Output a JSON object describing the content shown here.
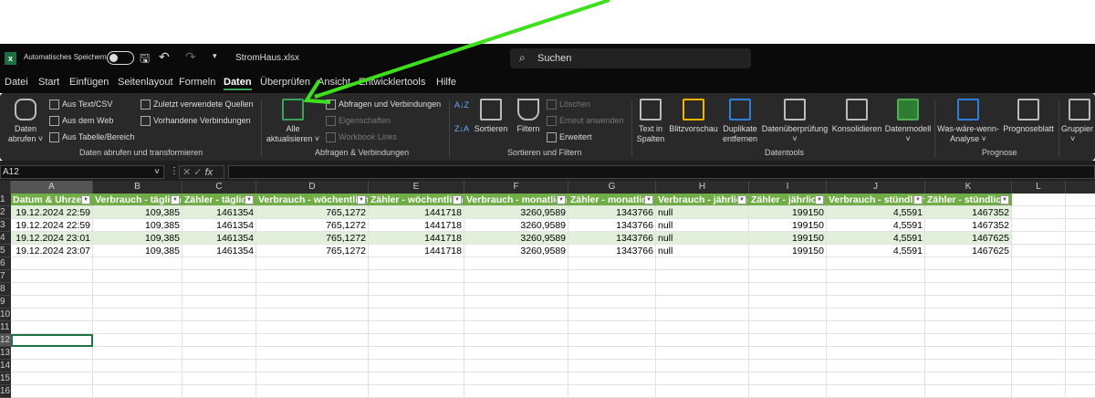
{
  "titlebar": {
    "autosave_label": "Automatisches Speichern",
    "filename": "StromHaus.xlsx",
    "search_placeholder": "Suchen"
  },
  "tabs": [
    "Datei",
    "Start",
    "Einfügen",
    "Seitenlayout",
    "Formeln",
    "Daten",
    "Überprüfen",
    "Ansicht",
    "Entwicklertools",
    "Hilfe"
  ],
  "active_tab": "Daten",
  "ribbon": {
    "daten_abrufen_1": "Daten",
    "daten_abrufen_2": "abrufen",
    "aus_text": "Aus Text/CSV",
    "aus_web": "Aus dem Web",
    "aus_tabelle": "Aus Tabelle/Bereich",
    "zuletzt": "Zuletzt verwendete Quellen",
    "vorhandene": "Vorhandene Verbindungen",
    "group1": "Daten abrufen und transformieren",
    "alle_1": "Alle",
    "alle_2": "aktualisieren",
    "abfragen": "Abfragen und Verbindungen",
    "eigenschaften": "Eigenschaften",
    "workbook_links": "Workbook Links",
    "group2": "Abfragen & Verbindungen",
    "sortieren": "Sortieren",
    "filtern": "Filtern",
    "loeschen": "Löschen",
    "erneut": "Erneut anwenden",
    "erweitert": "Erweitert",
    "group3": "Sortieren und Filtern",
    "text_in_1": "Text in",
    "text_in_2": "Spalten",
    "blitz": "Blitzvorschau",
    "dup_1": "Duplikate",
    "dup_2": "entfernen",
    "datenueberpruefung": "Datenüberprüfung",
    "konsolidieren": "Konsolidieren",
    "datenmodell": "Datenmodell",
    "group4": "Datentools",
    "waswaere_1": "Was-wäre-wenn-",
    "waswaere_2": "Analyse",
    "prognoseblatt": "Prognoseblatt",
    "group5": "Prognose",
    "gruppieren": "Gruppier"
  },
  "formula_bar": {
    "name_box": "A12",
    "formula": ""
  },
  "sheet": {
    "columns": [
      "A",
      "B",
      "C",
      "D",
      "E",
      "F",
      "G",
      "H",
      "I",
      "J",
      "K",
      "L",
      "M"
    ],
    "rows": [
      "1",
      "2",
      "3",
      "4",
      "5",
      "6",
      "7",
      "8",
      "9",
      "10",
      "11",
      "12",
      "13",
      "14",
      "15",
      "16"
    ],
    "headers": [
      "Datum & Uhrzeit",
      "Verbrauch - täglich",
      "Zähler - täglich",
      "Verbrauch - wöchentlich",
      "Zähler - wöchentlich",
      "Verbrauch - monatlich",
      "Zähler - monatlich",
      "Verbrauch - jährlich",
      "Zähler - jährlich",
      "Verbrauch - stündlich",
      "Zähler - stündlich"
    ],
    "data": [
      [
        "19.12.2024 22:59",
        "109,385",
        "1461354",
        "765,1272",
        "1441718",
        "3260,9589",
        "1343766",
        "null",
        "199150",
        "4,5591",
        "1467352"
      ],
      [
        "19.12.2024 22:59",
        "109,385",
        "1461354",
        "765,1272",
        "1441718",
        "3260,9589",
        "1343766",
        "null",
        "199150",
        "4,5591",
        "1467352"
      ],
      [
        "19.12.2024 23:01",
        "109,385",
        "1461354",
        "765,1272",
        "1441718",
        "3260,9589",
        "1343766",
        "null",
        "199150",
        "4,5591",
        "1467625"
      ],
      [
        "19.12.2024 23:07",
        "109,385",
        "1461354",
        "765,1272",
        "1441718",
        "3260,9589",
        "1343766",
        "null",
        "199150",
        "4,5591",
        "1467625"
      ]
    ],
    "selected_cell": "A12"
  },
  "colors": {
    "table_header": "#70ad47",
    "band": "#e2efda",
    "arrow": "#3ee01e",
    "active_tab_underline": "#3aa35a"
  }
}
